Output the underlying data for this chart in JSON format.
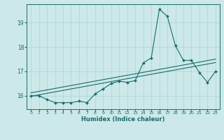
{
  "title": "",
  "xlabel": "Humidex (Indice chaleur)",
  "bg_color": "#cce8e8",
  "line_color": "#1a6b6b",
  "grid_color": "#aad4d4",
  "xlim": [
    -0.5,
    23.5
  ],
  "ylim": [
    15.45,
    19.75
  ],
  "yticks": [
    16,
    17,
    18,
    19
  ],
  "xticks": [
    0,
    1,
    2,
    3,
    4,
    5,
    6,
    7,
    8,
    9,
    10,
    11,
    12,
    13,
    14,
    15,
    16,
    17,
    18,
    19,
    20,
    21,
    22,
    23
  ],
  "x_main": [
    0,
    1,
    2,
    3,
    4,
    5,
    6,
    7,
    8,
    9,
    10,
    11,
    12,
    13,
    14,
    15,
    16,
    17,
    18,
    19,
    20,
    21,
    22,
    23
  ],
  "y_main": [
    16.0,
    16.0,
    15.85,
    15.72,
    15.72,
    15.72,
    15.78,
    15.72,
    16.08,
    16.28,
    16.5,
    16.6,
    16.55,
    16.62,
    17.35,
    17.55,
    19.55,
    19.25,
    18.05,
    17.45,
    17.45,
    16.95,
    16.55,
    17.0
  ],
  "y_line2": [
    15.98,
    16.04,
    16.1,
    16.16,
    16.22,
    16.28,
    16.34,
    16.4,
    16.46,
    16.52,
    16.58,
    16.64,
    16.7,
    16.76,
    16.82,
    16.88,
    16.94,
    17.0,
    17.06,
    17.12,
    17.18,
    17.24,
    17.3,
    17.36
  ],
  "y_line3": [
    16.12,
    16.18,
    16.24,
    16.3,
    16.36,
    16.42,
    16.48,
    16.54,
    16.6,
    16.66,
    16.72,
    16.78,
    16.84,
    16.9,
    16.96,
    17.02,
    17.08,
    17.14,
    17.2,
    17.26,
    17.32,
    17.38,
    17.44,
    17.5
  ]
}
